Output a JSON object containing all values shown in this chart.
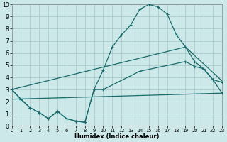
{
  "xlabel": "Humidex (Indice chaleur)",
  "background_color": "#cce8e8",
  "grid_color": "#aacccc",
  "line_color": "#1a6b6b",
  "xlim": [
    0,
    23
  ],
  "ylim": [
    0,
    10
  ],
  "xticks": [
    0,
    1,
    2,
    3,
    4,
    5,
    6,
    7,
    8,
    9,
    10,
    11,
    12,
    13,
    14,
    15,
    16,
    17,
    18,
    19,
    20,
    21,
    22,
    23
  ],
  "yticks": [
    0,
    1,
    2,
    3,
    4,
    5,
    6,
    7,
    8,
    9,
    10
  ],
  "curve1_x": [
    0,
    1,
    2,
    3,
    4,
    5,
    6,
    7,
    8,
    9,
    10,
    11,
    12,
    13,
    14,
    15,
    16,
    17,
    18,
    19,
    20,
    21,
    22,
    23
  ],
  "curve1_y": [
    3.0,
    2.2,
    1.5,
    1.1,
    0.6,
    1.2,
    0.6,
    0.4,
    0.3,
    3.0,
    4.6,
    6.5,
    7.5,
    8.3,
    9.6,
    10.0,
    9.8,
    9.2,
    7.5,
    6.5,
    5.3,
    4.7,
    3.8,
    2.7
  ],
  "curve2_x": [
    0,
    1,
    2,
    3,
    4,
    5,
    6,
    7,
    8,
    9,
    10,
    14,
    19,
    20,
    21,
    22,
    23
  ],
  "curve2_y": [
    3.0,
    2.2,
    1.5,
    1.1,
    0.6,
    1.2,
    0.6,
    0.4,
    0.3,
    3.0,
    3.0,
    4.5,
    5.3,
    4.9,
    4.7,
    3.8,
    3.6
  ],
  "curve3_x": [
    0,
    19,
    23
  ],
  "curve3_y": [
    3.0,
    6.5,
    3.7
  ],
  "curve4_x": [
    0,
    23
  ],
  "curve4_y": [
    2.2,
    2.7
  ]
}
